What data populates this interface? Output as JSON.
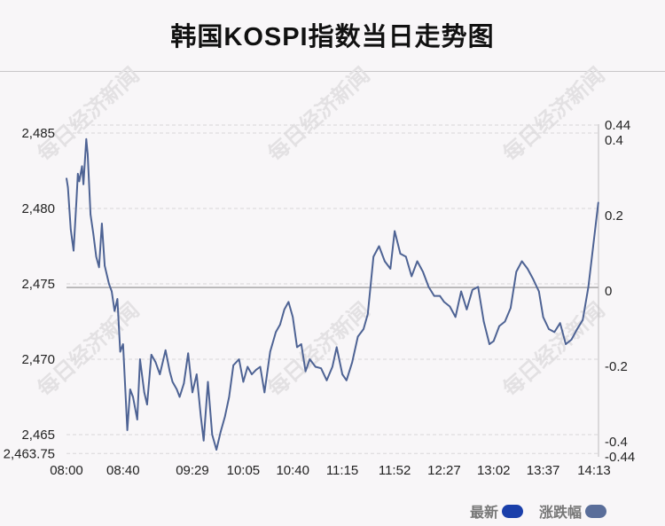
{
  "chart_data": {
    "type": "line",
    "title": "韩国KOSPI指数当日走势图",
    "x_ticks": [
      "08:00",
      "08:40",
      "09:29",
      "10:05",
      "10:40",
      "11:15",
      "11:52",
      "12:27",
      "13:02",
      "13:37",
      "14:13"
    ],
    "y_ticks": [
      "2,485",
      "2,480",
      "2,475",
      "2,470",
      "2,465",
      "2,463.75"
    ],
    "y_tick_values": [
      2485,
      2480,
      2475,
      2470,
      2465,
      2463.75
    ],
    "y2_ticks": [
      "0.44",
      "0.4",
      "0.2",
      "0",
      "-0.2",
      "-0.4",
      "-0.44"
    ],
    "y2_tick_values": [
      0.44,
      0.4,
      0.2,
      0,
      -0.2,
      -0.4,
      -0.44
    ],
    "ylim": [
      2463.75,
      2485.95
    ],
    "y2lim": [
      -0.44,
      0.44
    ],
    "reference_value": 2474.76,
    "grid": "horizontal dashed",
    "legend": {
      "items": [
        {
          "label": "最新",
          "color": "#1a3faa"
        },
        {
          "label": "涨跌幅",
          "color": "#5a6e9a"
        }
      ],
      "position": "bottom-right"
    },
    "watermark": "每日经济新闻",
    "series": [
      {
        "name": "最新",
        "color": "#4e6394",
        "x": [
          "08:00",
          "08:01",
          "08:03",
          "08:05",
          "08:07",
          "08:08",
          "08:09",
          "08:11",
          "08:12",
          "08:14",
          "08:15",
          "08:17",
          "08:19",
          "08:21",
          "08:23",
          "08:25",
          "08:27",
          "08:30",
          "08:32",
          "08:34",
          "08:36",
          "08:38",
          "08:40",
          "08:43",
          "08:45",
          "08:47",
          "08:50",
          "08:52",
          "08:55",
          "08:57",
          "09:00",
          "09:03",
          "09:06",
          "09:10",
          "09:13",
          "09:15",
          "09:18",
          "09:20",
          "09:23",
          "09:26",
          "09:29",
          "09:32",
          "09:35",
          "09:37",
          "09:40",
          "09:43",
          "09:46",
          "09:49",
          "09:52",
          "09:55",
          "09:58",
          "10:02",
          "10:05",
          "10:08",
          "10:11",
          "10:14",
          "10:17",
          "10:20",
          "10:24",
          "10:28",
          "10:31",
          "10:34",
          "10:37",
          "10:40",
          "10:43",
          "10:46",
          "10:49",
          "10:52",
          "10:56",
          "11:00",
          "11:04",
          "11:08",
          "11:11",
          "11:15",
          "11:18",
          "11:22",
          "11:26",
          "11:30",
          "11:33",
          "11:37",
          "11:41",
          "11:45",
          "11:49",
          "11:52",
          "11:56",
          "12:00",
          "12:04",
          "12:08",
          "12:12",
          "12:16",
          "12:20",
          "12:24",
          "12:27",
          "12:31",
          "12:35",
          "12:39",
          "12:43",
          "12:47",
          "12:51",
          "12:55",
          "12:59",
          "13:02",
          "13:06",
          "13:10",
          "13:14",
          "13:18",
          "13:22",
          "13:26",
          "13:30",
          "13:34",
          "13:37",
          "13:41",
          "13:45",
          "13:49",
          "13:53",
          "13:57",
          "14:01",
          "14:05",
          "14:09",
          "14:13",
          "14:16"
        ],
        "values": [
          2482.0,
          2481.4,
          2478.6,
          2477.2,
          2480.5,
          2482.3,
          2481.8,
          2482.8,
          2481.6,
          2484.6,
          2483.6,
          2479.6,
          2478.3,
          2476.8,
          2476.1,
          2479.0,
          2476.2,
          2475.0,
          2474.5,
          2473.2,
          2474.0,
          2470.5,
          2471.0,
          2465.3,
          2468.0,
          2467.5,
          2466.0,
          2470.0,
          2467.8,
          2467.0,
          2470.3,
          2469.8,
          2469.0,
          2470.6,
          2469.2,
          2468.5,
          2468.0,
          2467.5,
          2468.4,
          2470.4,
          2467.8,
          2469.0,
          2466.2,
          2464.6,
          2468.5,
          2465.0,
          2464.0,
          2465.2,
          2466.2,
          2467.5,
          2469.6,
          2470.0,
          2468.5,
          2469.5,
          2469.0,
          2469.3,
          2469.5,
          2467.8,
          2470.5,
          2471.8,
          2472.3,
          2473.3,
          2473.8,
          2472.8,
          2470.8,
          2471.0,
          2469.2,
          2470.0,
          2469.5,
          2469.4,
          2468.6,
          2469.5,
          2470.8,
          2469.0,
          2468.6,
          2469.8,
          2471.5,
          2472.0,
          2473.0,
          2476.8,
          2477.5,
          2476.5,
          2476.0,
          2478.5,
          2477.0,
          2476.8,
          2475.5,
          2476.5,
          2475.8,
          2474.8,
          2474.2,
          2474.2,
          2473.8,
          2473.5,
          2472.8,
          2474.5,
          2473.3,
          2474.6,
          2474.8,
          2472.5,
          2471.0,
          2471.2,
          2472.2,
          2472.5,
          2473.4,
          2475.8,
          2476.5,
          2476.0,
          2475.3,
          2474.5,
          2472.8,
          2472.0,
          2471.8,
          2472.4,
          2471.0,
          2471.3,
          2472.0,
          2472.6,
          2474.8,
          2478.0,
          2480.4
        ]
      }
    ]
  }
}
